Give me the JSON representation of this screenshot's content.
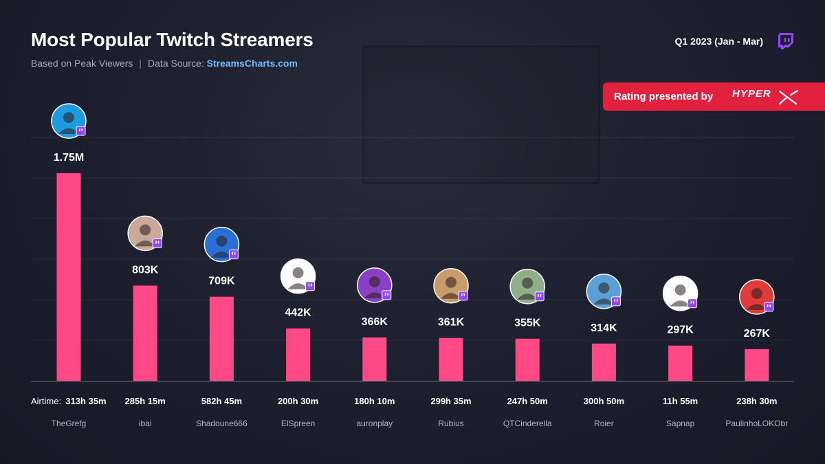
{
  "header": {
    "title": "Most Popular Twitch Streamers",
    "subtitle_lead": "Based on Peak Viewers",
    "subtitle_sep": "|",
    "subtitle_source_label": "Data Source:",
    "subtitle_source": "StreamsCharts.com",
    "period": "Q1 2023 (Jan - Mar)"
  },
  "sponsor": {
    "label": "Rating presented by",
    "brand": "HYPER"
  },
  "colors": {
    "bar": "#ff4886",
    "sponsor_bg": "#e2213f",
    "twitch": "#9146ff",
    "link": "#6fb7ff"
  },
  "chart_data": {
    "type": "bar",
    "categories": [
      "TheGrefg",
      "ibai",
      "Shadoune666",
      "ElSpreen",
      "auronplay",
      "Rubius",
      "QTCinderella",
      "Roier",
      "Sapnap",
      "PaulinhoLOKObr"
    ],
    "values": [
      1750000,
      803000,
      709000,
      442000,
      366000,
      361000,
      355000,
      314000,
      297000,
      267000
    ],
    "value_labels": [
      "1.75M",
      "803K",
      "709K",
      "442K",
      "366K",
      "361K",
      "355K",
      "314K",
      "297K",
      "267K"
    ],
    "airtime_label": "Airtime:",
    "airtime": [
      "313h 35m",
      "285h 15m",
      "582h 45m",
      "200h 30m",
      "180h 10m",
      "299h 35m",
      "247h 50m",
      "300h 50m",
      "11h 55m",
      "238h 30m"
    ],
    "avatar_colors": [
      "#1e9be0",
      "#c9a99a",
      "#2a6fd6",
      "#ffffff",
      "#8a3fc4",
      "#c99a6a",
      "#8fae8a",
      "#5aa0d6",
      "#ffffff",
      "#e03a3a"
    ],
    "ylim": [
      0,
      1750000
    ],
    "grid": true
  }
}
